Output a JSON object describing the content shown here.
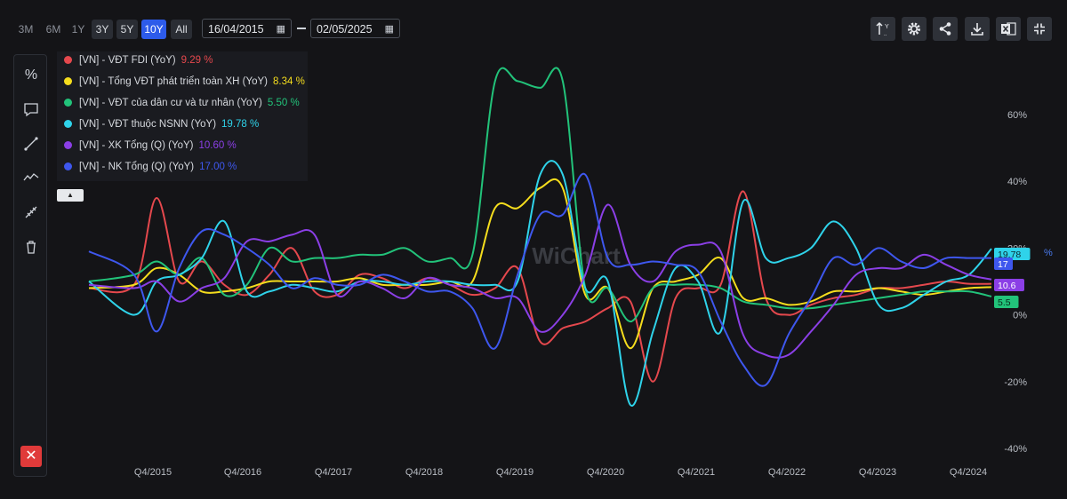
{
  "toolbar": {
    "ranges": [
      "3M",
      "6M",
      "1Y",
      "3Y",
      "5Y",
      "10Y",
      "All"
    ],
    "active_range": "10Y",
    "date_from": "16/04/2015",
    "date_to": "02/05/2025",
    "icons": [
      "axis-settings-icon",
      "gear-icon",
      "share-icon",
      "download-icon",
      "excel-icon",
      "collapse-icon"
    ]
  },
  "sidebar": {
    "icons": [
      "percent-icon",
      "comment-icon",
      "line-tool-icon",
      "trend-icon",
      "measure-icon",
      "trash-icon"
    ],
    "close_label": "✕"
  },
  "legend": [
    {
      "name": "[VN] - VĐT FDI (YoY)",
      "value": "9.29 %",
      "color": "#e5484d"
    },
    {
      "name": "[VN] - Tổng VĐT phát triển toàn XH (YoY)",
      "value": "8.34 %",
      "color": "#f5dd1d"
    },
    {
      "name": "[VN] - VĐT của dân cư và tư nhân (YoY)",
      "value": "5.50 %",
      "color": "#22c37a"
    },
    {
      "name": "[VN] - VĐT thuộc NSNN (YoY)",
      "value": "19.78 %",
      "color": "#2fd3ea"
    },
    {
      "name": "[VN] - XK Tổng (Q) (YoY)",
      "value": "10.60 %",
      "color": "#8b3fe6"
    },
    {
      "name": "[VN] - NK Tổng (Q) (YoY)",
      "value": "17.00 %",
      "color": "#3e57ee"
    }
  ],
  "chart_data": {
    "type": "line",
    "x_ticks": [
      "Q4/2015",
      "Q4/2016",
      "Q4/2017",
      "Q4/2018",
      "Q4/2019",
      "Q4/2020",
      "Q4/2021",
      "Q4/2022",
      "Q4/2023",
      "Q4/2024"
    ],
    "y_ticks": [
      "60%",
      "40%",
      "20%",
      "0%",
      "-20%",
      "-40%"
    ],
    "y_label": "%",
    "ylim": [
      -40,
      60
    ],
    "watermark": "WiChart",
    "end_labels": [
      "19.78",
      "17",
      "10.6",
      "5.5"
    ],
    "series": [
      {
        "name": "[VN] - VĐT FDI (YoY)",
        "color": "#e5484d",
        "x": [
          2015.0,
          2015.5,
          2015.75,
          2016.0,
          2016.25,
          2016.5,
          2016.75,
          2017.0,
          2017.25,
          2017.5,
          2017.75,
          2018.0,
          2018.25,
          2018.5,
          2018.75,
          2019.0,
          2019.25,
          2019.5,
          2019.75,
          2020.0,
          2020.25,
          2020.5,
          2020.75,
          2021.0,
          2021.25,
          2021.5,
          2021.75,
          2022.0,
          2022.25,
          2022.5,
          2022.75,
          2023.0,
          2023.25,
          2023.5,
          2023.75,
          2024.0,
          2024.25,
          2024.5,
          2024.75,
          2025.0
        ],
        "y": [
          8,
          9,
          35,
          10,
          16,
          9,
          6,
          12,
          20,
          7,
          6,
          12,
          11,
          8,
          11,
          9,
          6,
          8,
          14,
          -8,
          -4,
          -2,
          2,
          4,
          -20,
          5,
          8,
          9,
          37,
          5,
          0,
          3,
          5,
          6,
          8,
          8,
          9,
          10,
          9.3,
          9.3
        ]
      },
      {
        "name": "[VN] - Tổng VĐT phát triển toàn XH (YoY)",
        "color": "#f5dd1d",
        "x": [
          2015.0,
          2015.5,
          2015.75,
          2016.0,
          2016.25,
          2016.5,
          2016.75,
          2017.0,
          2017.25,
          2017.5,
          2017.75,
          2018.0,
          2018.25,
          2018.5,
          2018.75,
          2019.0,
          2019.25,
          2019.5,
          2019.75,
          2020.0,
          2020.25,
          2020.5,
          2020.75,
          2021.0,
          2021.25,
          2021.5,
          2021.75,
          2022.0,
          2022.25,
          2022.5,
          2022.75,
          2023.0,
          2023.25,
          2023.5,
          2023.75,
          2024.0,
          2024.25,
          2024.5,
          2024.75,
          2025.0
        ],
        "y": [
          8,
          9,
          14,
          12,
          7,
          7,
          8,
          10,
          10,
          10,
          10,
          11,
          9,
          9,
          9,
          10,
          10,
          32,
          32,
          38,
          38,
          6,
          8,
          -10,
          8,
          10,
          12,
          17,
          5,
          5,
          3,
          4,
          7,
          7,
          8,
          7,
          6,
          7,
          8,
          8.3
        ]
      },
      {
        "name": "[VN] - VĐT của dân cư và tư nhân (YoY)",
        "color": "#22c37a",
        "x": [
          2015.0,
          2015.5,
          2015.75,
          2016.0,
          2016.25,
          2016.5,
          2016.75,
          2017.0,
          2017.25,
          2017.5,
          2017.75,
          2018.0,
          2018.25,
          2018.5,
          2018.75,
          2019.0,
          2019.25,
          2019.5,
          2019.75,
          2020.0,
          2020.25,
          2020.5,
          2020.75,
          2021.0,
          2021.25,
          2021.5,
          2021.75,
          2022.0,
          2022.25,
          2022.5,
          2022.75,
          2023.0,
          2023.25,
          2023.5,
          2023.75,
          2024.0,
          2024.25,
          2024.5,
          2024.75,
          2025.0
        ],
        "y": [
          10,
          12,
          16,
          12,
          17,
          6,
          9,
          20,
          16,
          17,
          17,
          18,
          18,
          20,
          16,
          17,
          18,
          70,
          70,
          68,
          70,
          8,
          8,
          -2,
          8,
          9,
          9,
          8,
          4,
          3,
          2,
          2,
          3,
          4,
          5,
          6,
          7,
          7,
          7,
          5.5
        ]
      },
      {
        "name": "[VN] - VĐT thuộc NSNN (YoY)",
        "color": "#2fd3ea",
        "x": [
          2015.0,
          2015.5,
          2015.75,
          2016.0,
          2016.25,
          2016.5,
          2016.75,
          2017.0,
          2017.25,
          2017.5,
          2017.75,
          2018.0,
          2018.25,
          2018.5,
          2018.75,
          2019.0,
          2019.25,
          2019.5,
          2019.75,
          2020.0,
          2020.25,
          2020.5,
          2020.75,
          2021.0,
          2021.25,
          2021.5,
          2021.75,
          2022.0,
          2022.25,
          2022.5,
          2022.75,
          2023.0,
          2023.25,
          2023.5,
          2023.75,
          2024.0,
          2024.25,
          2024.5,
          2024.75,
          2025.0
        ],
        "y": [
          10,
          0,
          10,
          12,
          17,
          28,
          7,
          7,
          9,
          8,
          7,
          10,
          10,
          9,
          10,
          10,
          9,
          9,
          10,
          42,
          42,
          8,
          10,
          -27,
          -5,
          14,
          10,
          -5,
          34,
          17,
          17,
          20,
          28,
          20,
          3,
          2,
          6,
          10,
          12,
          19.8
        ]
      },
      {
        "name": "[VN] - XK Tổng (Q) (YoY)",
        "color": "#8b3fe6",
        "x": [
          2015.0,
          2015.5,
          2015.75,
          2016.0,
          2016.25,
          2016.5,
          2016.75,
          2017.0,
          2017.25,
          2017.5,
          2017.75,
          2018.0,
          2018.25,
          2018.5,
          2018.75,
          2019.0,
          2019.25,
          2019.5,
          2019.75,
          2020.0,
          2020.25,
          2020.5,
          2020.75,
          2021.0,
          2021.25,
          2021.5,
          2021.75,
          2022.0,
          2022.25,
          2022.5,
          2022.75,
          2023.0,
          2023.25,
          2023.5,
          2023.75,
          2024.0,
          2024.25,
          2024.5,
          2024.75,
          2025.0
        ],
        "y": [
          9,
          8,
          10,
          4,
          8,
          11,
          22,
          22,
          24,
          24,
          6,
          10,
          8,
          5,
          11,
          9,
          8,
          5,
          5,
          -5,
          0,
          12,
          33,
          15,
          10,
          19,
          21,
          19,
          -6,
          -12,
          -12,
          -5,
          3,
          12,
          14,
          14,
          18,
          15,
          12,
          10.6
        ]
      },
      {
        "name": "[VN] - NK Tổng (Q) (YoY)",
        "color": "#3e57ee",
        "x": [
          2015.0,
          2015.5,
          2015.75,
          2016.0,
          2016.25,
          2016.5,
          2016.75,
          2017.0,
          2017.25,
          2017.5,
          2017.75,
          2018.0,
          2018.25,
          2018.5,
          2018.75,
          2019.0,
          2019.25,
          2019.5,
          2019.75,
          2020.0,
          2020.25,
          2020.5,
          2020.75,
          2021.0,
          2021.25,
          2021.5,
          2021.75,
          2022.0,
          2022.25,
          2022.5,
          2022.75,
          2023.0,
          2023.25,
          2023.5,
          2023.75,
          2024.0,
          2024.25,
          2024.5,
          2024.75,
          2025.0
        ],
        "y": [
          19,
          12,
          -5,
          14,
          25,
          24,
          20,
          15,
          8,
          11,
          9,
          9,
          12,
          10,
          7,
          7,
          2,
          -10,
          12,
          30,
          30,
          42,
          17,
          15,
          16,
          15,
          13,
          -2,
          -15,
          -21,
          -6,
          5,
          17,
          15,
          20,
          16,
          14,
          17,
          17,
          17
        ]
      }
    ]
  }
}
